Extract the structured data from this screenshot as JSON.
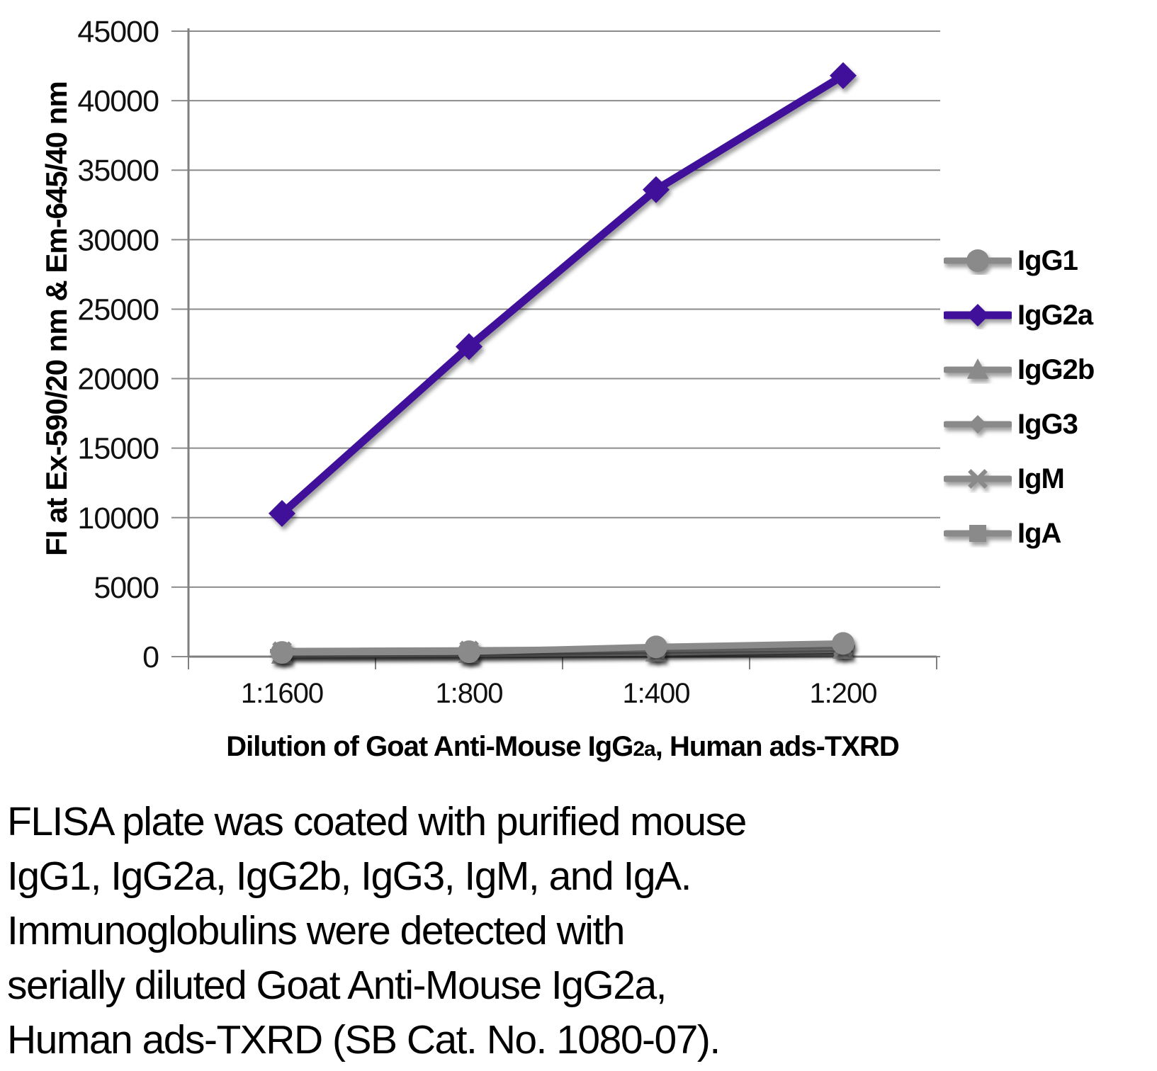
{
  "chart_data": {
    "type": "line",
    "title": "",
    "x_categories": [
      "1:1600",
      "1:800",
      "1:400",
      "1:200"
    ],
    "xlabel": {
      "prefix": "Dilution of Goat Anti-Mouse IgG",
      "subscript": "2a",
      "suffix": ", Human ads-TXRD"
    },
    "ylabel": "FI at Ex-590/20 nm & Em-645/40 nm",
    "ylim": [
      0,
      45000
    ],
    "ytick_step": 5000,
    "ytick_values": [
      0,
      5000,
      10000,
      15000,
      20000,
      25000,
      30000,
      35000,
      40000,
      45000
    ],
    "ytick_labels": [
      "0",
      "5000",
      "10000",
      "15000",
      "20000",
      "25000",
      "30000",
      "35000",
      "40000",
      "45000"
    ],
    "grid": "horizontal",
    "legend_position": "right",
    "series": [
      {
        "name": "IgG1",
        "marker": "circle",
        "color": "#8A8A8A",
        "marker_size": 16,
        "line_width": 9,
        "values": [
          300,
          350,
          700,
          950
        ]
      },
      {
        "name": "IgG2a",
        "marker": "diamond",
        "color": "#40109A",
        "marker_size": 19,
        "line_width": 11,
        "values": [
          10300,
          22300,
          33600,
          41800
        ]
      },
      {
        "name": "IgG2b",
        "marker": "triangle",
        "color": "#8A8A8A",
        "marker_size": 16,
        "line_width": 9,
        "values": [
          150,
          200,
          300,
          500
        ]
      },
      {
        "name": "IgG3",
        "marker": "diamond",
        "color": "#8A8A8A",
        "marker_size": 13,
        "line_width": 9,
        "values": [
          100,
          150,
          250,
          420
        ]
      },
      {
        "name": "IgM",
        "marker": "star",
        "color": "#8A8A8A",
        "marker_size": 15,
        "line_width": 9,
        "values": [
          400,
          450,
          550,
          700
        ]
      },
      {
        "name": "IgA",
        "marker": "square",
        "color": "#8A8A8A",
        "marker_size": 12,
        "line_width": 9,
        "values": [
          220,
          260,
          380,
          560
        ]
      }
    ],
    "plot_order": [
      "IgG3",
      "IgA",
      "IgG2b",
      "IgM",
      "IgG1",
      "IgG2a"
    ]
  },
  "colors": {
    "gridline": "#8C8C8C",
    "axis": "#7F7F7F",
    "accent_purple": "#40109A",
    "series_gray": "#8A8A8A",
    "text": "#000000"
  },
  "caption": {
    "lines": [
      "FLISA plate was coated with purified mouse",
      "IgG1, IgG2a, IgG2b, IgG3, IgM, and IgA.",
      "Immunoglobulins were detected with",
      "serially diluted Goat Anti-Mouse IgG2a,",
      "Human ads-TXRD (SB Cat. No. 1080-07)."
    ]
  }
}
